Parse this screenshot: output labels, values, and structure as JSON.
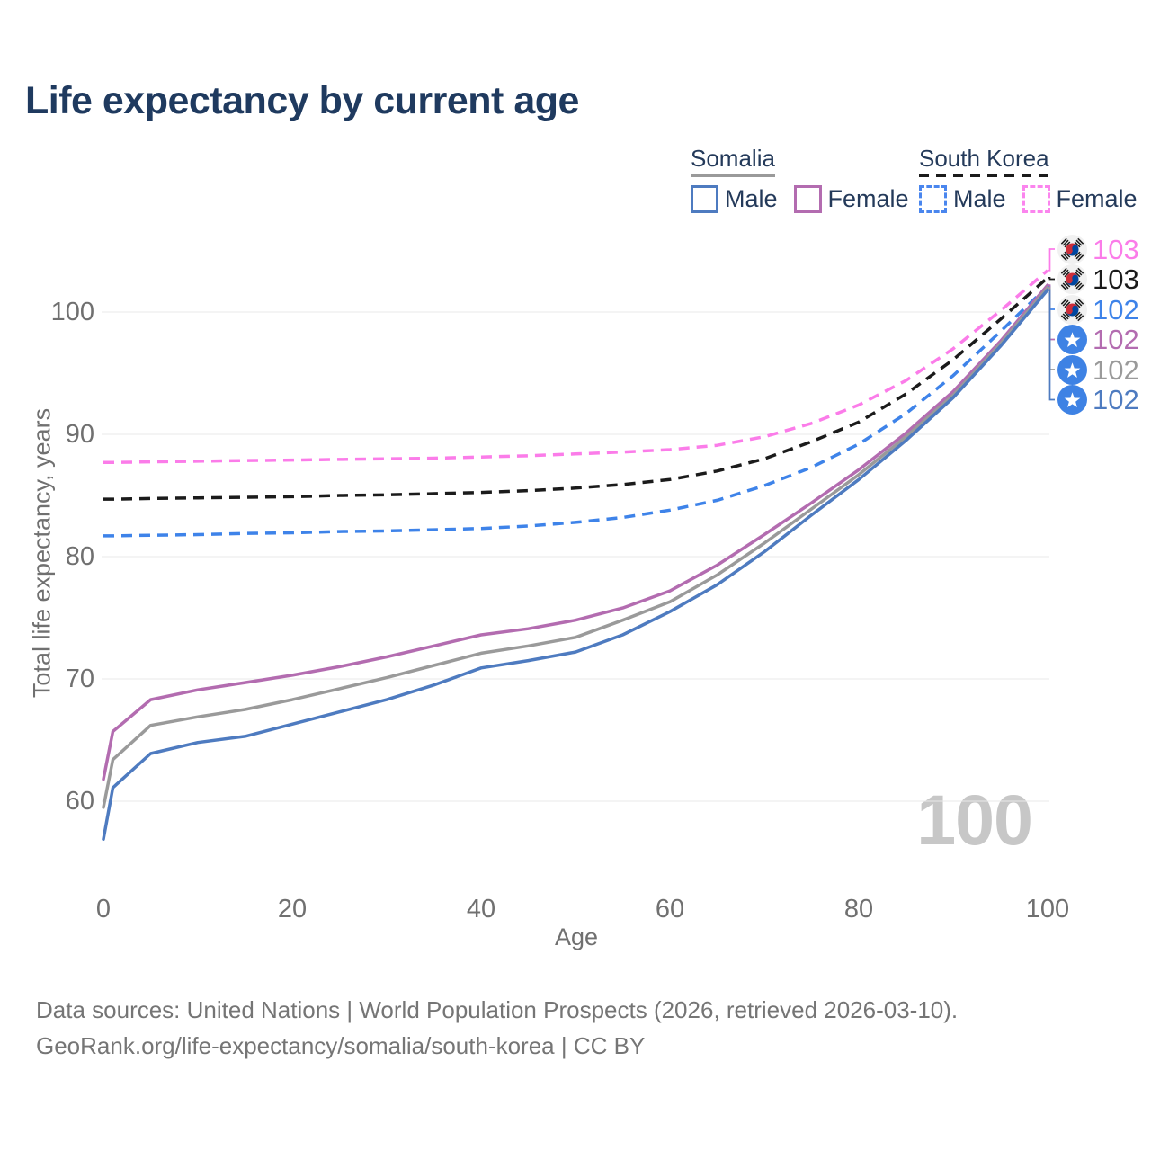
{
  "title": "Life expectancy by current age",
  "watermark": "100",
  "legend": {
    "groups": [
      {
        "label": "Somalia",
        "line_style": "solid",
        "line_color": "#9a9a9a",
        "items": [
          {
            "label": "Male",
            "color": "#4e7bc0",
            "dashed": false
          },
          {
            "label": "Female",
            "color": "#b36cb0",
            "dashed": false
          }
        ]
      },
      {
        "label": "South Korea",
        "line_style": "dashed",
        "line_color": "#1b1b1b",
        "items": [
          {
            "label": "Male",
            "color": "#4a86ee",
            "dashed": true
          },
          {
            "label": "Female",
            "color": "#fb85ee",
            "dashed": true
          }
        ]
      }
    ]
  },
  "chart_data": {
    "type": "line",
    "title": "Life expectancy by current age",
    "xlabel": "Age",
    "ylabel": "Total life expectancy, years",
    "xlim": [
      0,
      100
    ],
    "ylim": [
      55,
      105
    ],
    "xticks": [
      0,
      20,
      40,
      60,
      80,
      100
    ],
    "yticks": [
      60,
      70,
      80,
      90,
      100
    ],
    "grid": true,
    "legend_position": "top-right",
    "age_points": [
      0,
      1,
      5,
      10,
      15,
      20,
      25,
      30,
      35,
      40,
      45,
      50,
      55,
      60,
      65,
      70,
      75,
      80,
      85,
      90,
      95,
      100
    ],
    "series": [
      {
        "id": "sk_female",
        "country": "South Korea",
        "sex": "Female",
        "style": "dashed",
        "color": "#fb7ce9",
        "flag": "kr",
        "end_label": "103",
        "values": [
          87.7,
          87.7,
          87.75,
          87.8,
          87.85,
          87.9,
          87.95,
          88.0,
          88.05,
          88.15,
          88.25,
          88.4,
          88.55,
          88.75,
          89.1,
          89.8,
          90.9,
          92.4,
          94.4,
          97.0,
          100.1,
          103.4
        ]
      },
      {
        "id": "sk_total",
        "country": "South Korea",
        "sex": "Both sexes",
        "style": "dashed",
        "color": "#1b1b1b",
        "flag": "kr",
        "end_label": "103",
        "values": [
          84.7,
          84.7,
          84.75,
          84.8,
          84.85,
          84.9,
          85.0,
          85.05,
          85.15,
          85.25,
          85.4,
          85.6,
          85.9,
          86.3,
          87.0,
          88.0,
          89.4,
          91.0,
          93.3,
          96.1,
          99.4,
          102.8
        ]
      },
      {
        "id": "sk_male",
        "country": "South Korea",
        "sex": "Male",
        "style": "dashed",
        "color": "#3e83e9",
        "flag": "kr",
        "end_label": "102",
        "values": [
          81.7,
          81.7,
          81.75,
          81.8,
          81.9,
          81.95,
          82.05,
          82.1,
          82.2,
          82.3,
          82.5,
          82.8,
          83.2,
          83.8,
          84.6,
          85.8,
          87.3,
          89.2,
          91.7,
          94.8,
          98.4,
          102.1
        ]
      },
      {
        "id": "somalia_female",
        "country": "Somalia",
        "sex": "Female",
        "style": "solid",
        "color": "#b36cb0",
        "flag": "so",
        "end_label": "102",
        "values": [
          61.8,
          65.7,
          68.3,
          69.1,
          69.7,
          70.3,
          71.0,
          71.8,
          72.7,
          73.6,
          74.1,
          74.8,
          75.8,
          77.2,
          79.3,
          81.8,
          84.4,
          87.1,
          90.1,
          93.5,
          97.6,
          102.2
        ]
      },
      {
        "id": "somalia_total",
        "country": "Somalia",
        "sex": "Both sexes",
        "style": "solid",
        "color": "#9a9a9a",
        "flag": "so",
        "end_label": "102",
        "values": [
          59.5,
          63.4,
          66.2,
          66.9,
          67.5,
          68.3,
          69.2,
          70.1,
          71.1,
          72.1,
          72.7,
          73.4,
          74.8,
          76.3,
          78.5,
          81.1,
          83.9,
          86.7,
          89.8,
          93.2,
          97.4,
          102.0
        ]
      },
      {
        "id": "somalia_male",
        "country": "Somalia",
        "sex": "Male",
        "style": "solid",
        "color": "#4e7bc0",
        "flag": "so",
        "end_label": "102",
        "values": [
          56.9,
          61.1,
          63.9,
          64.8,
          65.3,
          66.3,
          67.3,
          68.3,
          69.5,
          70.9,
          71.5,
          72.2,
          73.6,
          75.5,
          77.7,
          80.4,
          83.4,
          86.3,
          89.5,
          93.0,
          97.2,
          101.8
        ]
      }
    ]
  },
  "footer": {
    "line1": "Data sources: United Nations | World Population Prospects (2026, retrieved 2026-03-10).",
    "line2": "GeoRank.org/life-expectancy/somalia/south-korea | CC BY"
  }
}
